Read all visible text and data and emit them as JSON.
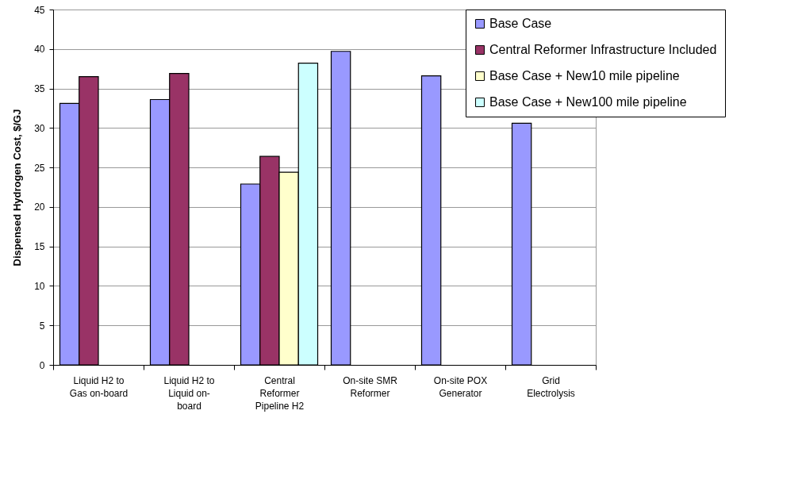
{
  "chart_data": {
    "type": "bar",
    "ylabel": "Dispensed Hydrogen Cost, $/GJ",
    "categories": [
      "Liquid H2 to Gas on-board",
      "Liquid H2 to Liquid on-board",
      "Central Reformer Pipeline H2",
      "On-site SMR Reformer",
      "On-site POX Generator",
      "Grid Electrolysis"
    ],
    "series": [
      {
        "name": "Base Case",
        "color": "#9999ff",
        "values": [
          33.1,
          33.6,
          22.9,
          39.7,
          36.6,
          30.6
        ]
      },
      {
        "name": "Central Reformer Infrastructure Included",
        "color": "#993366",
        "values": [
          36.5,
          36.9,
          26.4,
          null,
          null,
          null
        ]
      },
      {
        "name": "Base Case + New10 mile pipeline",
        "color": "#ffffcc",
        "values": [
          null,
          null,
          24.4,
          null,
          null,
          null
        ]
      },
      {
        "name": "Base Case + New100 mile pipeline",
        "color": "#ccffff",
        "values": [
          null,
          null,
          38.2,
          null,
          null,
          null
        ]
      }
    ],
    "ylim": [
      0,
      45
    ],
    "yticks": [
      0,
      5,
      10,
      15,
      20,
      25,
      30,
      35,
      40,
      45
    ],
    "grid": "y",
    "legend": "top right"
  }
}
